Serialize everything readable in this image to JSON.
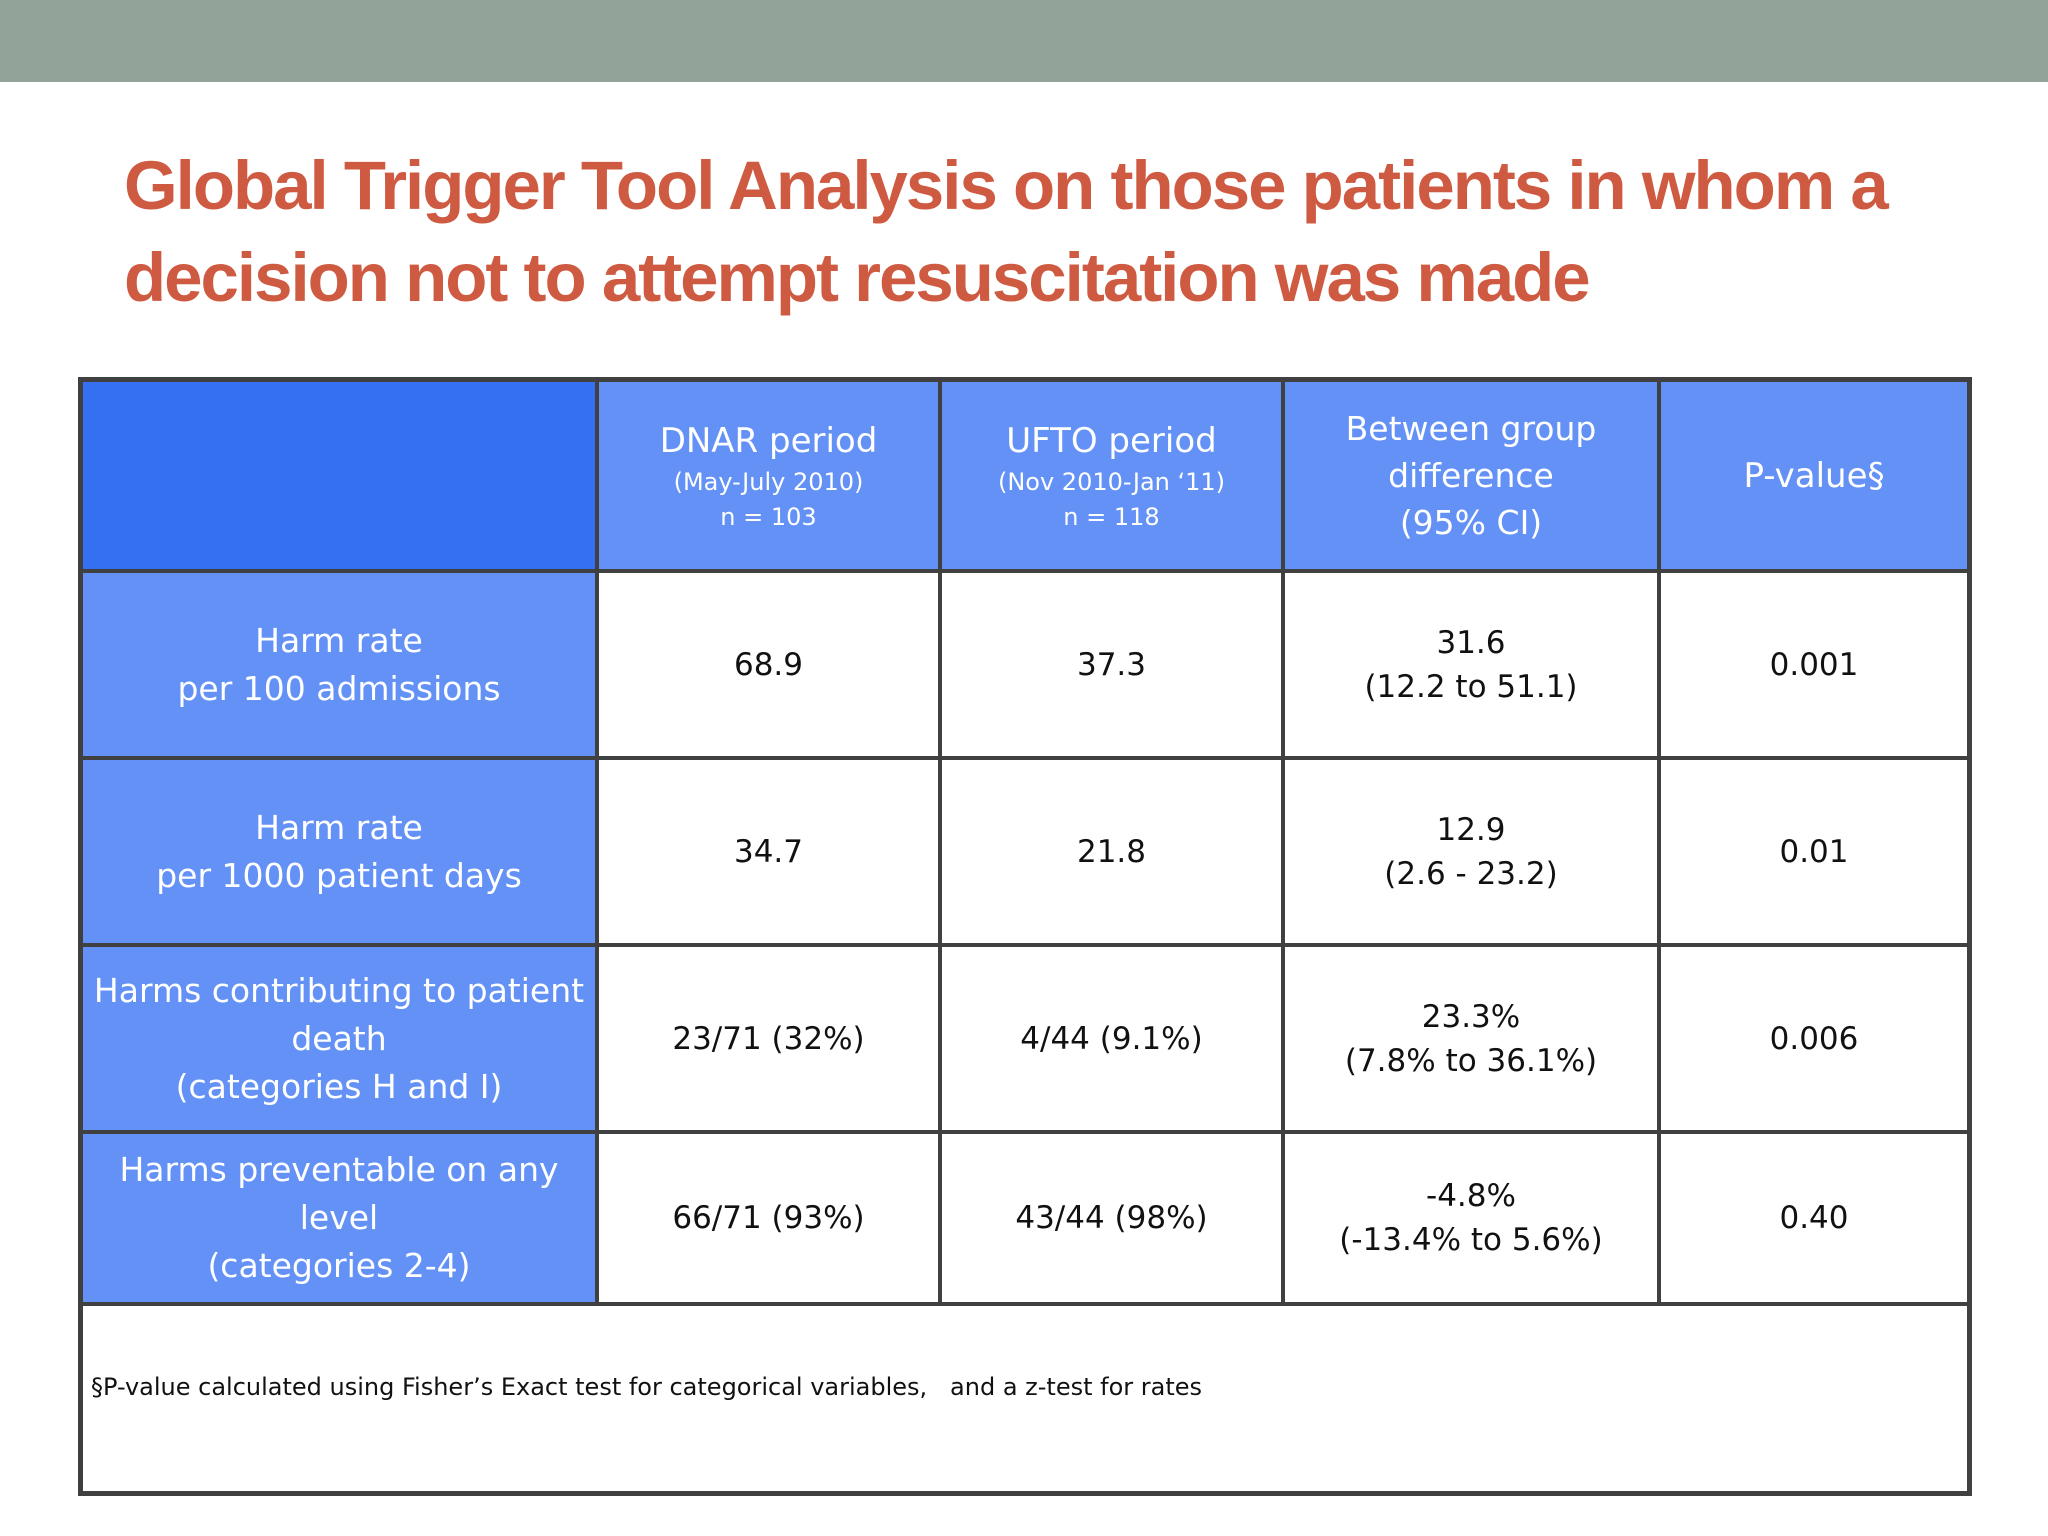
{
  "title": {
    "line1": "Global Trigger Tool Analysis on those patients in whom a",
    "line2": "decision not to attempt resuscitation was made"
  },
  "table": {
    "columns": [
      {
        "main": "DNAR period",
        "sub1": "(May-July 2010)",
        "sub2": "n = 103"
      },
      {
        "main": "UFTO period",
        "sub1": "(Nov 2010-Jan ‘11)",
        "sub2": "n = 118"
      },
      {
        "line1": "Between group",
        "line2": "difference",
        "line3": "(95% CI)"
      },
      {
        "main": "P-value§"
      }
    ],
    "rows": [
      {
        "label1": "Harm rate",
        "label2": "per 100 admissions",
        "dnar": "68.9",
        "ufto": "37.3",
        "diff1": "31.6",
        "diff2": "(12.2 to 51.1)",
        "p": "0.001"
      },
      {
        "label1": "Harm rate",
        "label2": "per 1000 patient days",
        "dnar": "34.7",
        "ufto": "21.8",
        "diff1": "12.9",
        "diff2": "(2.6 - 23.2)",
        "p": "0.01"
      },
      {
        "label1": "Harms contributing to patient",
        "label2": "death",
        "label3": "(categories H and I)",
        "dnar": "23/71 (32%)",
        "ufto": "4/44 (9.1%)",
        "diff1": "23.3%",
        "diff2": "(7.8% to 36.1%)",
        "p": "0.006"
      },
      {
        "label1": "Harms preventable on any level",
        "label2": "(categories 2-4)",
        "dnar": "66/71 (93%)",
        "ufto": "43/44 (98%)",
        "diff1": "-4.8%",
        "diff2": "(-13.4% to 5.6%)",
        "p": "0.40"
      }
    ],
    "footnote": "§P-value calculated using Fisher’s Exact test for categorical variables,   and a z-test for rates"
  },
  "colors": {
    "top_bar": "#92a39a",
    "title": "#cf5a42",
    "header_blue": "#6391f5",
    "corner_blue": "#3570f2",
    "border": "#404040"
  }
}
